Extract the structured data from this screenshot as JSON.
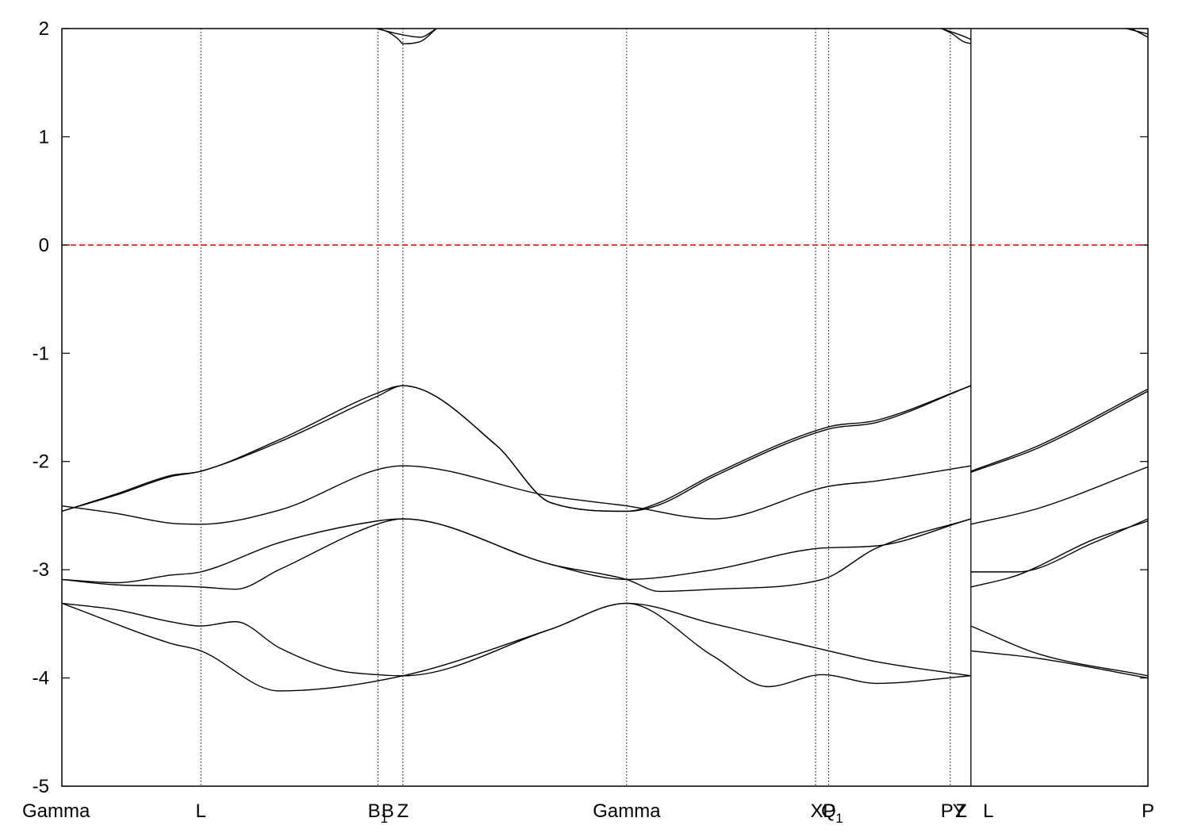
{
  "chart_data": {
    "type": "line",
    "title": "",
    "xlabel": "",
    "ylabel": "",
    "xlim": [
      0,
      1
    ],
    "ylim": [
      -5,
      2
    ],
    "yticks": [
      2,
      1,
      0,
      -1,
      -2,
      -3,
      -4,
      -5
    ],
    "ytick_labels": [
      "2",
      "1",
      "0",
      "-1",
      "-2",
      "-3",
      "-4",
      "-5"
    ],
    "grid": false,
    "legend": "none",
    "kpoints": [
      {
        "text": "Gamma",
        "sub": "",
        "x": 0.0
      },
      {
        "text": "L",
        "sub": "",
        "x": 0.128
      },
      {
        "text": "B",
        "sub": "1",
        "x": 0.291
      },
      {
        "text": "B",
        "sub": "",
        "x": 0.3
      },
      {
        "text": "Z",
        "sub": "",
        "x": 0.314
      },
      {
        "text": "Gamma",
        "sub": "",
        "x": 0.52
      },
      {
        "text": "X",
        "sub": "",
        "x": 0.695
      },
      {
        "text": "P",
        "sub": "1",
        "x": 0.71
      },
      {
        "text": "Q",
        "sub": "",
        "x": 0.706
      },
      {
        "text": "P",
        "sub": "",
        "x": 0.815
      },
      {
        "text": "Z",
        "sub": "",
        "x": 0.828
      },
      {
        "text": "Y",
        "sub": "",
        "x": 0.826
      },
      {
        "text": "L",
        "sub": "",
        "x": 0.853
      },
      {
        "text": "P",
        "sub": "",
        "x": 1.0
      }
    ],
    "vlines_x": [
      0.128,
      0.291,
      0.314,
      0.52,
      0.694,
      0.706,
      0.818,
      0.837
    ],
    "fermi_level": {
      "y": 0,
      "color": "#dd0000"
    },
    "discontinuity_x": 0.837,
    "colors": {
      "bands": "#000000",
      "fermi": "#dd0000",
      "kline": "#000000"
    },
    "series": [
      {
        "x": [
          0,
          0.1,
          0.128,
          0.2,
          0.314,
          0.45,
          0.52,
          0.6,
          0.706,
          0.75,
          0.837
        ],
        "y": [
          -3.31,
          -3.68,
          -3.75,
          -4.12,
          -3.98,
          -3.55,
          -3.31,
          -3.5,
          -3.75,
          -3.85,
          -3.98
        ]
      },
      {
        "x": [
          0,
          0.05,
          0.1,
          0.128,
          0.16,
          0.2,
          0.25,
          0.29,
          0.314,
          0.45,
          0.52,
          0.6,
          0.65,
          0.7,
          0.75,
          0.837
        ],
        "y": [
          -3.31,
          -3.37,
          -3.48,
          -3.52,
          -3.48,
          -3.72,
          -3.92,
          -3.97,
          -3.98,
          -3.55,
          -3.31,
          -3.8,
          -4.08,
          -3.97,
          -4.05,
          -3.98
        ]
      },
      {
        "x": [
          0,
          0.05,
          0.1,
          0.128,
          0.16,
          0.2,
          0.29,
          0.314,
          0.45,
          0.52,
          0.55,
          0.6,
          0.7,
          0.75,
          0.837
        ],
        "y": [
          -3.09,
          -3.14,
          -3.15,
          -3.16,
          -3.18,
          -3.0,
          -2.58,
          -2.53,
          -2.95,
          -3.09,
          -3.2,
          -3.18,
          -3.09,
          -2.8,
          -2.53
        ]
      },
      {
        "x": [
          0,
          0.05,
          0.1,
          0.128,
          0.2,
          0.29,
          0.314,
          0.45,
          0.52,
          0.6,
          0.7,
          0.75,
          0.837
        ],
        "y": [
          -3.09,
          -3.12,
          -3.05,
          -3.02,
          -2.75,
          -2.55,
          -2.53,
          -2.95,
          -3.09,
          -3.0,
          -2.8,
          -2.78,
          -2.53
        ]
      },
      {
        "x": [
          0,
          0.05,
          0.1,
          0.128,
          0.2,
          0.314,
          0.45,
          0.52,
          0.6,
          0.706,
          0.75,
          0.837
        ],
        "y": [
          -2.41,
          -2.48,
          -2.57,
          -2.58,
          -2.45,
          -2.04,
          -2.32,
          -2.41,
          -2.53,
          -2.23,
          -2.18,
          -2.04
        ]
      },
      {
        "x": [
          0,
          0.05,
          0.1,
          0.128,
          0.2,
          0.29,
          0.314,
          0.4,
          0.45,
          0.52,
          0.55,
          0.6,
          0.706,
          0.75,
          0.837
        ],
        "y": [
          -2.46,
          -2.3,
          -2.13,
          -2.09,
          -1.8,
          -1.37,
          -1.3,
          -1.85,
          -2.38,
          -2.46,
          -2.38,
          -2.12,
          -1.68,
          -1.62,
          -1.3
        ]
      },
      {
        "x": [
          0,
          0.05,
          0.1,
          0.128,
          0.2,
          0.29,
          0.314,
          0.4,
          0.45,
          0.52,
          0.55,
          0.6,
          0.706,
          0.75,
          0.837
        ],
        "y": [
          -2.46,
          -2.31,
          -2.14,
          -2.09,
          -1.82,
          -1.4,
          -1.3,
          -1.85,
          -2.38,
          -2.46,
          -2.4,
          -2.14,
          -1.7,
          -1.64,
          -1.3
        ]
      },
      {
        "x": [
          0.837,
          0.9,
          1.0
        ],
        "y": [
          -3.75,
          -3.82,
          -4.0
        ]
      },
      {
        "x": [
          0.837,
          0.9,
          1.0
        ],
        "y": [
          -3.52,
          -3.78,
          -3.98
        ]
      },
      {
        "x": [
          0.837,
          0.88,
          0.95,
          1.0
        ],
        "y": [
          -3.16,
          -3.05,
          -2.72,
          -2.55
        ]
      },
      {
        "x": [
          0.837,
          0.88,
          0.95,
          1.0
        ],
        "y": [
          -3.02,
          -3.02,
          -2.75,
          -2.53
        ]
      },
      {
        "x": [
          0.837,
          0.9,
          1.0
        ],
        "y": [
          -2.58,
          -2.43,
          -2.05
        ]
      },
      {
        "x": [
          0.837,
          0.9,
          1.0
        ],
        "y": [
          -2.09,
          -1.85,
          -1.33
        ]
      },
      {
        "x": [
          0.837,
          0.9,
          1.0
        ],
        "y": [
          -2.1,
          -1.87,
          -1.35
        ]
      },
      {
        "x": [
          0.29,
          0.3,
          0.31,
          0.314,
          0.33,
          0.345
        ],
        "y": [
          2.0,
          1.97,
          1.9,
          1.86,
          1.88,
          2.0
        ]
      },
      {
        "x": [
          0.29,
          0.31,
          0.33,
          0.345
        ],
        "y": [
          2.0,
          1.95,
          1.92,
          2.0
        ]
      },
      {
        "x": [
          0.81,
          0.82,
          0.83,
          0.837
        ],
        "y": [
          2.0,
          1.95,
          1.88,
          1.86
        ]
      },
      {
        "x": [
          0.81,
          0.83,
          0.837
        ],
        "y": [
          2.0,
          1.93,
          1.9
        ]
      },
      {
        "x": [
          0.985,
          1.0
        ],
        "y": [
          2.0,
          1.92
        ]
      },
      {
        "x": [
          0.98,
          1.0
        ],
        "y": [
          2.0,
          1.95
        ]
      }
    ]
  }
}
